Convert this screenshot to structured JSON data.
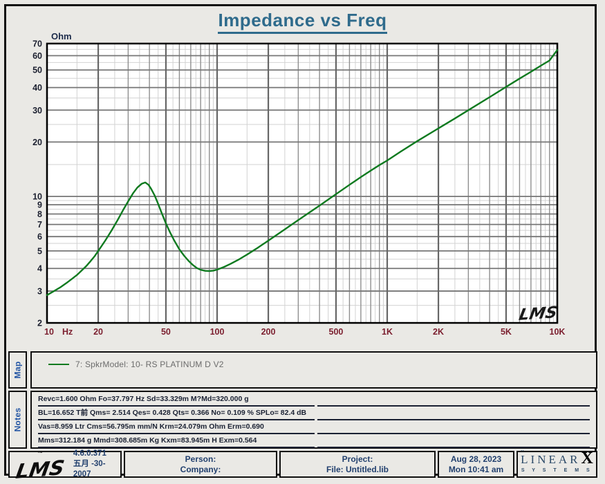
{
  "title": "Impedance vs Freq",
  "colors": {
    "accent_title": "#2f6b8c",
    "curve": "#0d7a1f",
    "x_tick_text": "#7c2030",
    "y_tick_text": "#1c2030",
    "panel_label": "#2456a4",
    "background": "#eae9e5"
  },
  "chart_data": {
    "type": "line",
    "title": "Impedance vs Freq",
    "xlabel": "Hz",
    "ylabel": "Ohm",
    "xscale": "log",
    "yscale": "log",
    "xlim": [
      10,
      10000
    ],
    "ylim": [
      2,
      70
    ],
    "grid": true,
    "x_unit_label": "Hz",
    "x_ticks": [
      {
        "v": 10,
        "label": "10"
      },
      {
        "v": 20,
        "label": "20"
      },
      {
        "v": 50,
        "label": "50"
      },
      {
        "v": 100,
        "label": "100"
      },
      {
        "v": 200,
        "label": "200"
      },
      {
        "v": 500,
        "label": "500"
      },
      {
        "v": 1000,
        "label": "1K"
      },
      {
        "v": 2000,
        "label": "2K"
      },
      {
        "v": 5000,
        "label": "5K"
      },
      {
        "v": 10000,
        "label": "10K"
      }
    ],
    "y_ticks": [
      2,
      3,
      4,
      5,
      6,
      7,
      8,
      9,
      10,
      20,
      30,
      40,
      50,
      60,
      70
    ],
    "watermark": "LMS",
    "series": [
      {
        "name": "7: SpkrModel: 10- RS PLATINUM D   V2",
        "color": "#0d7a1f",
        "points": [
          [
            10,
            2.85
          ],
          [
            11,
            3.0
          ],
          [
            12,
            3.15
          ],
          [
            13,
            3.32
          ],
          [
            14,
            3.5
          ],
          [
            15,
            3.68
          ],
          [
            16,
            3.9
          ],
          [
            17,
            4.12
          ],
          [
            18,
            4.38
          ],
          [
            19,
            4.66
          ],
          [
            20,
            5.0
          ],
          [
            22,
            5.7
          ],
          [
            24,
            6.5
          ],
          [
            26,
            7.4
          ],
          [
            28,
            8.4
          ],
          [
            30,
            9.4
          ],
          [
            32,
            10.4
          ],
          [
            34,
            11.2
          ],
          [
            36,
            11.75
          ],
          [
            37.8,
            11.95
          ],
          [
            39.5,
            11.6
          ],
          [
            41,
            11.0
          ],
          [
            43,
            10.1
          ],
          [
            45,
            9.1
          ],
          [
            47,
            8.2
          ],
          [
            50,
            7.1
          ],
          [
            53,
            6.3
          ],
          [
            56,
            5.7
          ],
          [
            60,
            5.1
          ],
          [
            64,
            4.7
          ],
          [
            68,
            4.4
          ],
          [
            72,
            4.18
          ],
          [
            76,
            4.02
          ],
          [
            80,
            3.93
          ],
          [
            85,
            3.88
          ],
          [
            90,
            3.87
          ],
          [
            95,
            3.89
          ],
          [
            100,
            3.94
          ],
          [
            110,
            4.08
          ],
          [
            120,
            4.24
          ],
          [
            135,
            4.5
          ],
          [
            150,
            4.77
          ],
          [
            170,
            5.14
          ],
          [
            200,
            5.7
          ],
          [
            240,
            6.4
          ],
          [
            300,
            7.4
          ],
          [
            400,
            8.9
          ],
          [
            500,
            10.3
          ],
          [
            600,
            11.6
          ],
          [
            700,
            12.8
          ],
          [
            800,
            13.9
          ],
          [
            900,
            14.9
          ],
          [
            1000,
            15.8
          ],
          [
            1200,
            17.7
          ],
          [
            1500,
            20.2
          ],
          [
            2000,
            23.8
          ],
          [
            2500,
            27.0
          ],
          [
            3000,
            30.0
          ],
          [
            4000,
            35.4
          ],
          [
            5000,
            40.3
          ],
          [
            6000,
            44.8
          ],
          [
            7000,
            48.9
          ],
          [
            8000,
            52.8
          ],
          [
            9000,
            56.4
          ],
          [
            10000,
            64.5
          ]
        ]
      }
    ]
  },
  "map": {
    "label": "Map",
    "legend_text": "7: SpkrModel: 10- RS PLATINUM D   V2"
  },
  "notes": {
    "label": "Notes",
    "lines": [
      "Revc=1.600 Ohm  Fo=37.797 Hz  Sd=33.329m M?Md=320.000 g",
      "BL=16.652 T前  Qms= 2.514  Qes= 0.428  Qts= 0.366  No= 0.109 %  SPLo= 82.4 dB",
      "Vas=8.959 Ltr  Cms=56.795m mm/N  Krm=24.079m Ohm  Erm=0.690",
      "Mms=312.184 g  Mmd=308.685m Kg  Kxm=83.945m H  Exm=0.564"
    ]
  },
  "footer": {
    "lms_tm": "™",
    "lms_logo": "LMS",
    "version": "4.6.0.371",
    "build_date": "五月 -30-2007",
    "person_label": "Person:",
    "company_label": "Company:",
    "project_label": "Project:",
    "file_value": "File: Untitled.lib",
    "date": "Aug 28, 2023",
    "time": "Mon 10:41 am",
    "brand_linear": "LINEAR",
    "brand_umlaut": "¨",
    "brand_x": "X",
    "brand_systems": "S Y S T E M S"
  }
}
